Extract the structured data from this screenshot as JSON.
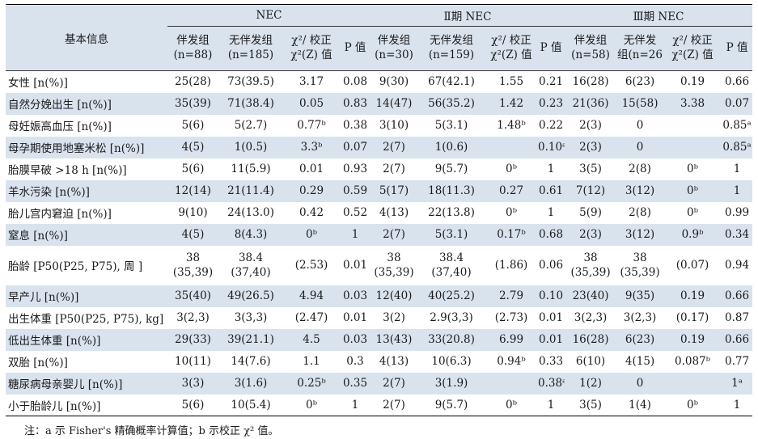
{
  "table": {
    "corner_label": "基本信息",
    "groups": [
      "NEC",
      "Ⅱ期 NEC",
      "Ⅲ期 NEC"
    ],
    "col_headers": [
      "伴发组\n(n=88)",
      "无伴发组\n(n=185)",
      "χ²/ 校正\nχ²(Z) 值",
      "P 值",
      "伴发组\n(n=30)",
      "无伴发组\n(n=159)",
      "χ²/ 校正\nχ²(Z) 值",
      "P 值",
      "伴发组\n(n=58)",
      "无伴发\n组(n=26)",
      "χ²/ 校正\nχ²(Z) 值",
      "P 值"
    ],
    "rows": [
      {
        "label": "女性 [n(%)]",
        "cells": [
          "25(28)",
          "73(39.5)",
          "3.17",
          "0.08",
          "9(30)",
          "67(42.1)",
          "1.55",
          "0.21",
          "16(28)",
          "6(23)",
          "0.19",
          "0.66"
        ]
      },
      {
        "label": "自然分娩出生 [n(%)]",
        "cells": [
          "35(39)",
          "71(38.4)",
          "0.05",
          "0.83",
          "14(47)",
          "56(35.2)",
          "1.42",
          "0.23",
          "21(36)",
          "15(58)",
          "3.38",
          "0.07"
        ]
      },
      {
        "label": "母妊娠高血压 [n(%)]",
        "cells": [
          "5(6)",
          "5(2.7)",
          "0.77ᵇ",
          "0.38",
          "3(10)",
          "5(3.1)",
          "1.48ᵇ",
          "0.22",
          "2(3)",
          "0",
          "",
          "0.85ᵃ"
        ]
      },
      {
        "label": "母孕期使用地塞米松 [n(%)]",
        "cells": [
          "4(5)",
          "1(0.5)",
          "3.3ᵇ",
          "0.07",
          "2(7)",
          "1(0.6)",
          "",
          "0.10ᵃ",
          "2(3)",
          "0",
          "",
          "0.85ᵃ"
        ]
      },
      {
        "label": "胎膜早破 >18 h [n(%)]",
        "cells": [
          "5(6)",
          "11(5.9)",
          "0.01",
          "0.93",
          "2(7)",
          "9(5.7)",
          "0ᵇ",
          "1",
          "3(5)",
          "2(8)",
          "0ᵇ",
          "1"
        ]
      },
      {
        "label": "羊水污染 [n(%)]",
        "cells": [
          "12(14)",
          "21(11.4)",
          "0.29",
          "0.59",
          "5(17)",
          "18(11.3)",
          "0.27",
          "0.61",
          "7(12)",
          "3(12)",
          "0ᵇ",
          "1"
        ]
      },
      {
        "label": "胎儿宫内窘迫 [n(%)]",
        "cells": [
          "9(10)",
          "24(13.0)",
          "0.42",
          "0.52",
          "4(13)",
          "22(13.8)",
          "0ᵇ",
          "1",
          "5(9)",
          "2(8)",
          "0ᵇ",
          "0.99"
        ]
      },
      {
        "label": "窒息 [n(%)]",
        "cells": [
          "4(5)",
          "8(4.3)",
          "0ᵇ",
          "1",
          "2(7)",
          "5(3.1)",
          "0.17ᵇ",
          "0.68",
          "2(3)",
          "3(12)",
          "0.9ᵇ",
          "0.34"
        ]
      },
      {
        "label": "胎龄 [P50(P25, P75), 周 ]",
        "cells": [
          "38\n(35,39)",
          "38.4\n(37,40)",
          "(2.53)",
          "0.01",
          "38\n(35,39)",
          "38.4\n(37,40)",
          "(1.86)",
          "0.06",
          "38\n(35,39)",
          "38\n(35,39)",
          "(0.07)",
          "0.94"
        ]
      },
      {
        "label": "早产儿 [n(%)]",
        "cells": [
          "35(40)",
          "49(26.5)",
          "4.94",
          "0.03",
          "12(40)",
          "40(25.2)",
          "2.79",
          "0.10",
          "23(40)",
          "9(35)",
          "0.19",
          "0.66"
        ]
      },
      {
        "label": "出生体重 [P50(P25, P75), kg]",
        "cells": [
          "3(2,3)",
          "3(3,3)",
          "(2.47)",
          "0.01",
          "3(2)",
          "2.9(3,3)",
          "(2.73)",
          "0.01",
          "3(2,3)",
          "3(2,3)",
          "(0.17)",
          "0.87"
        ]
      },
      {
        "label": "低出生体重 [n(%)]",
        "cells": [
          "29(33)",
          "39(21.1)",
          "4.5",
          "0.03",
          "13(43)",
          "33(20.8)",
          "6.99",
          "0.01",
          "16(28)",
          "6(23)",
          "0.19",
          "0.66"
        ]
      },
      {
        "label": "双胎 [n(%)]",
        "cells": [
          "10(11)",
          "14(7.6)",
          "1.1",
          "0.3",
          "4(13)",
          "10(6.3)",
          "0.94ᵇ",
          "0.33",
          "6(10)",
          "4(15)",
          "0.087ᵇ",
          "0.77"
        ]
      },
      {
        "label": "糖尿病母亲婴儿 [n(%)]",
        "cells": [
          "3(3)",
          "3(1.6)",
          "0.25ᵇ",
          "0.35",
          "2(7)",
          "3(1.9)",
          "",
          "0.38ᵃ",
          "1(2)",
          "0",
          "",
          "1ᵃ"
        ]
      },
      {
        "label": "小于胎龄儿 [n(%)]",
        "cells": [
          "5(6)",
          "10(5.4)",
          "0ᵇ",
          "1",
          "2(7)",
          "9(5.7)",
          "0ᵇ",
          "1",
          "3(5)",
          "1(4)",
          "0ᵇ",
          "1"
        ]
      }
    ]
  },
  "footnote": "注：a 示 Fisher's 精确概率计算值；b 示校正 χ² 值。"
}
